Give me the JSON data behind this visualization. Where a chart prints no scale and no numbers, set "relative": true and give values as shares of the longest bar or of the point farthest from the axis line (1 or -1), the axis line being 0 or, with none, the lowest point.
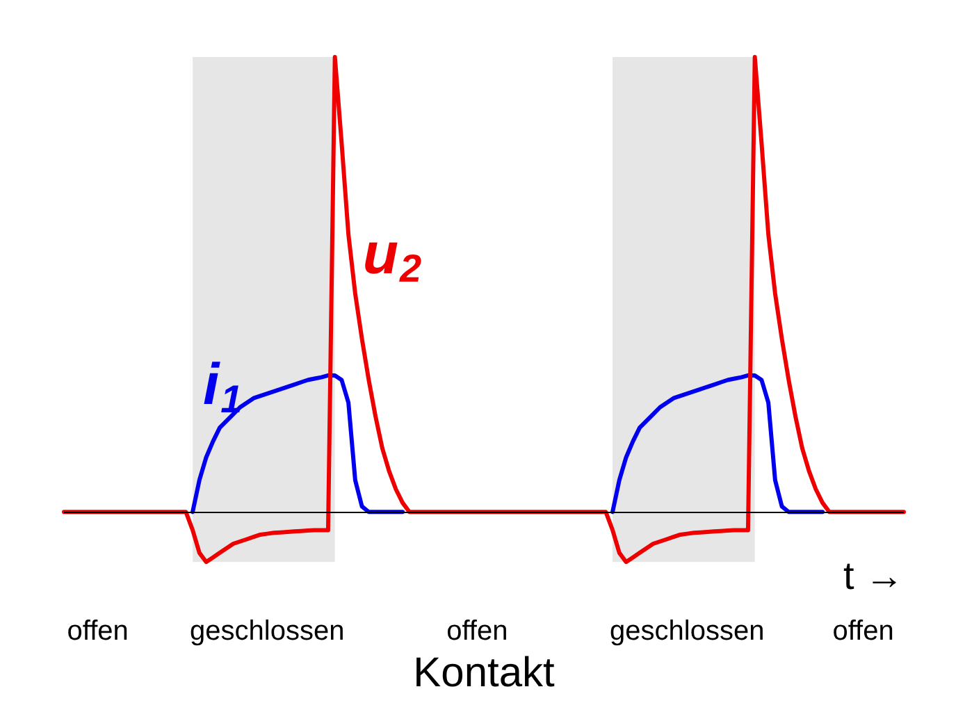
{
  "chart_data": {
    "type": "line",
    "relative": true,
    "xlabel": "Kontakt",
    "legend": false,
    "grid": false,
    "marker": "none",
    "line_style": "solid",
    "annotations": [
      "t →"
    ],
    "ref_lines": [
      {
        "axis": "y",
        "value": 0,
        "color": "#000000"
      }
    ],
    "categories": [
      null,
      null,
      null,
      null,
      null,
      "offen",
      null,
      null,
      null,
      null,
      null,
      null,
      null,
      null,
      null,
      null,
      null,
      null,
      null,
      null,
      null,
      null,
      null,
      null,
      null,
      null,
      null,
      null,
      null,
      null,
      "geschlossen",
      null,
      null,
      null,
      null,
      null,
      null,
      null,
      null,
      null,
      null,
      null,
      null,
      null,
      null,
      null,
      null,
      null,
      null,
      null,
      null,
      null,
      null,
      null,
      null,
      null,
      null,
      null,
      null,
      null,
      null,
      "offen",
      null,
      null,
      null,
      null,
      null,
      null,
      null,
      null,
      null,
      null,
      null,
      null,
      null,
      null,
      null,
      null,
      null,
      null,
      null,
      null,
      null,
      null,
      null,
      null,
      null,
      null,
      null,
      null,
      null,
      null,
      "geschlossen",
      null,
      null,
      null,
      null,
      null,
      null,
      null,
      null,
      null,
      null,
      null,
      null,
      null,
      null,
      null,
      null,
      null,
      null,
      null,
      null,
      null,
      null,
      null,
      null,
      null,
      "offen",
      null,
      null,
      null,
      null,
      null,
      null
    ],
    "series": [
      {
        "name": "i$_{1}$",
        "color": "#0000ee",
        "values": [
          null,
          null,
          null,
          null,
          null,
          null,
          null,
          null,
          null,
          null,
          null,
          null,
          null,
          null,
          null,
          null,
          null,
          null,
          null,
          0,
          0.07,
          0.12,
          0.155,
          0.185,
          0.2,
          0.215,
          0.23,
          0.24,
          0.25,
          0.255,
          0.26,
          0.265,
          0.27,
          0.275,
          0.28,
          0.285,
          0.29,
          0.293,
          0.296,
          0.3,
          0.3,
          0.29,
          0.24,
          0.07,
          0.012,
          0,
          0,
          0,
          0,
          0,
          0,
          null,
          null,
          null,
          null,
          null,
          null,
          null,
          null,
          null,
          null,
          null,
          null,
          null,
          null,
          null,
          null,
          null,
          null,
          null,
          null,
          null,
          null,
          null,
          null,
          null,
          null,
          null,
          null,
          null,
          null,
          0,
          0.07,
          0.12,
          0.155,
          0.185,
          0.2,
          0.215,
          0.23,
          0.24,
          0.25,
          0.255,
          0.26,
          0.265,
          0.27,
          0.275,
          0.28,
          0.285,
          0.29,
          0.293,
          0.296,
          0.3,
          0.3,
          0.29,
          0.24,
          0.07,
          0.012,
          0,
          0,
          0,
          0,
          0,
          0,
          null,
          null,
          null,
          null,
          null,
          null,
          null,
          null,
          null,
          null,
          null,
          null
        ]
      },
      {
        "name": "u$_{2}$",
        "color": "#ee0000",
        "values": [
          0,
          0,
          0,
          0,
          0,
          0,
          0,
          0,
          0,
          0,
          0,
          0,
          0,
          0,
          0,
          0,
          0,
          0,
          0,
          -0.04,
          -0.09,
          -0.11,
          -0.1,
          -0.09,
          -0.08,
          -0.07,
          -0.065,
          -0.06,
          -0.055,
          -0.05,
          -0.048,
          -0.046,
          -0.045,
          -0.044,
          -0.043,
          -0.042,
          -0.041,
          -0.04,
          -0.04,
          -0.04,
          1,
          0.81,
          0.61,
          0.48,
          0.38,
          0.29,
          0.21,
          0.14,
          0.09,
          0.05,
          0.02,
          0,
          0,
          0,
          0,
          0,
          0,
          0,
          0,
          0,
          0,
          0,
          0,
          0,
          0,
          0,
          0,
          0,
          0,
          0,
          0,
          0,
          0,
          0,
          0,
          0,
          0,
          0,
          0,
          0,
          0,
          -0.04,
          -0.09,
          -0.11,
          -0.1,
          -0.09,
          -0.08,
          -0.07,
          -0.065,
          -0.06,
          -0.055,
          -0.05,
          -0.048,
          -0.046,
          -0.045,
          -0.044,
          -0.043,
          -0.042,
          -0.041,
          -0.04,
          -0.04,
          -0.04,
          1,
          0.81,
          0.61,
          0.48,
          0.38,
          0.29,
          0.21,
          0.14,
          0.09,
          0.05,
          0.02,
          0,
          0,
          0,
          0,
          0,
          0,
          0,
          0,
          0,
          0,
          0,
          0
        ]
      }
    ]
  }
}
